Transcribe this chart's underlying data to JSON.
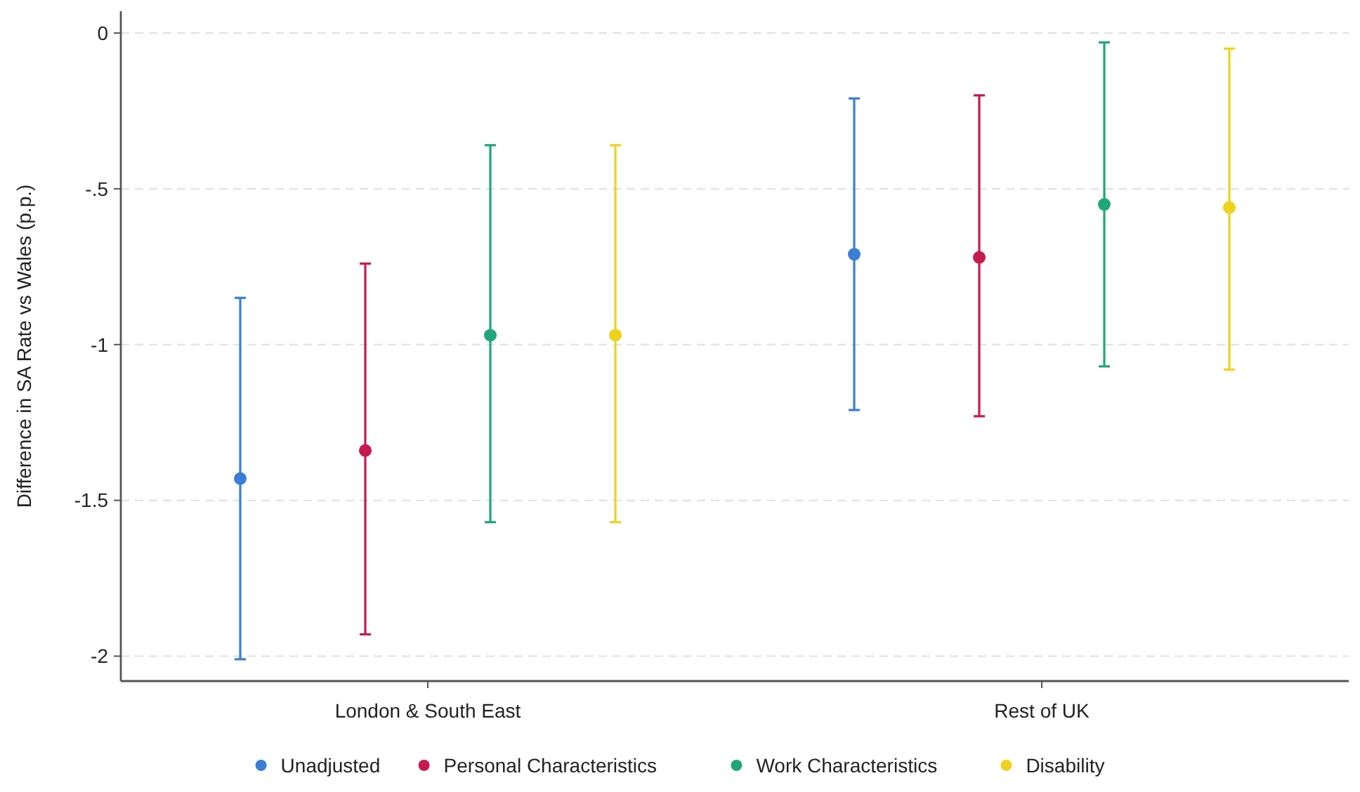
{
  "chart_data": {
    "type": "scatter",
    "ylabel": "Difference in SA Rate vs Wales (p.p.)",
    "categories": [
      "London & South East",
      "Rest of UK"
    ],
    "ylim": [
      -2.08,
      0.07
    ],
    "yticks": [
      {
        "value": 0,
        "label": "0"
      },
      {
        "value": -0.5,
        "label": "-.5"
      },
      {
        "value": -1,
        "label": "-1"
      },
      {
        "value": -1.5,
        "label": "-1.5"
      },
      {
        "value": -2,
        "label": "-2"
      }
    ],
    "grid": "y",
    "legend": "bottom",
    "marker": "circle",
    "series": [
      {
        "name": "Unadjusted",
        "color": "#3a7fd5",
        "values": [
          -1.43,
          -0.71
        ],
        "errors": [
          [
            -2.01,
            -0.85
          ],
          [
            -1.21,
            -0.21
          ]
        ]
      },
      {
        "name": "Personal Characteristics",
        "color": "#c8194f",
        "values": [
          -1.34,
          -0.72
        ],
        "errors": [
          [
            -1.93,
            -0.74
          ],
          [
            -1.23,
            -0.2
          ]
        ]
      },
      {
        "name": "Work Characteristics",
        "color": "#1fa77a",
        "values": [
          -0.97,
          -0.55
        ],
        "errors": [
          [
            -1.57,
            -0.36
          ],
          [
            -1.07,
            -0.03
          ]
        ]
      },
      {
        "name": "Disability",
        "color": "#eed21c",
        "values": [
          -0.97,
          -0.56
        ],
        "errors": [
          [
            -1.57,
            -0.36
          ],
          [
            -1.08,
            -0.05
          ]
        ]
      }
    ]
  }
}
